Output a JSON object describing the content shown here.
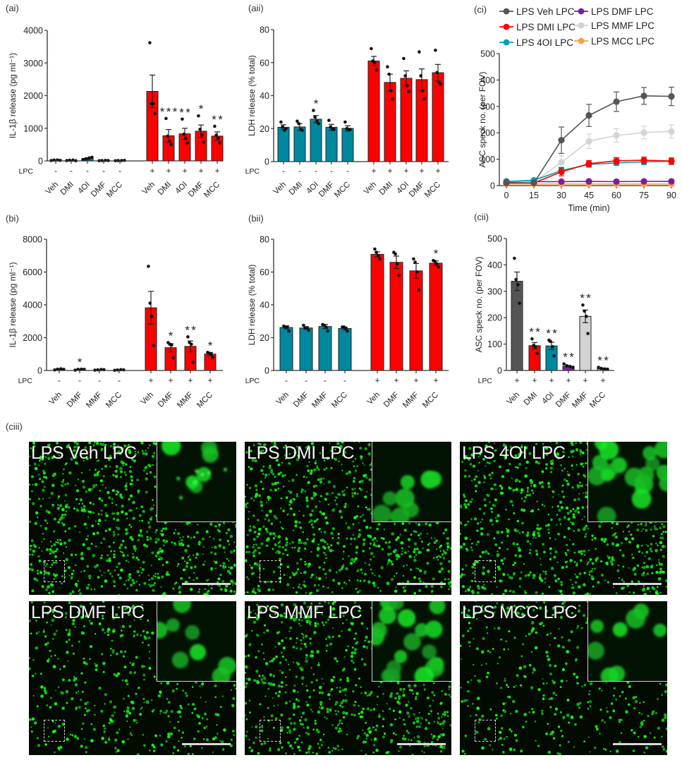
{
  "panels": {
    "ai": "(ai)",
    "aii": "(aii)",
    "ci": "(ci)",
    "bi": "(bi)",
    "bii": "(bii)",
    "cii": "(cii)",
    "ciii": "(ciii)"
  },
  "colors": {
    "red": "#ff0000",
    "teal": "#00889e",
    "dark_gray": "#555555",
    "light_gray": "#d3d3d3",
    "purple": "#7a1fa2",
    "orange": "#f5a04a",
    "axis": "#333333"
  },
  "lpc_label": "LPC",
  "chart_data": [
    {
      "id": "ai",
      "type": "bar",
      "title": "(ai)",
      "ylabel": "IL-1β release (pg ml⁻¹)",
      "xlabel": "",
      "ylim": [
        0,
        4000
      ],
      "yticks": [
        0,
        1000,
        2000,
        3000,
        4000
      ],
      "categories": [
        "Veh",
        "DMI",
        "4OI",
        "DMF",
        "MCC",
        "Veh",
        "DMI",
        "4OI",
        "DMF",
        "MCC"
      ],
      "lpc": [
        "-",
        "-",
        "-",
        "-",
        "-",
        "+",
        "+",
        "+",
        "+",
        "+"
      ],
      "values": [
        20,
        15,
        70,
        10,
        10,
        2130,
        770,
        830,
        910,
        760
      ],
      "sem": [
        8,
        6,
        25,
        5,
        5,
        500,
        190,
        170,
        190,
        130
      ],
      "points": [
        [
          10,
          25,
          30,
          15
        ],
        [
          10,
          20,
          25,
          5
        ],
        [
          40,
          60,
          90,
          110
        ],
        [
          5,
          10,
          15,
          10
        ],
        [
          5,
          10,
          10,
          15
        ],
        [
          3620,
          1750,
          1750,
          1450
        ],
        [
          1300,
          760,
          600,
          500
        ],
        [
          1280,
          820,
          690,
          550
        ],
        [
          1380,
          970,
          800,
          580
        ],
        [
          1060,
          790,
          700,
          550
        ]
      ],
      "significance": [
        "",
        "",
        "",
        "",
        "",
        "",
        "***",
        "**",
        "*",
        "**"
      ],
      "bar_colors": [
        "#00889e",
        "#00889e",
        "#00889e",
        "#00889e",
        "#00889e",
        "#ff0000",
        "#ff0000",
        "#ff0000",
        "#ff0000",
        "#ff0000"
      ]
    },
    {
      "id": "aii",
      "type": "bar",
      "title": "(aii)",
      "ylabel": "LDH release (% total)",
      "xlabel": "",
      "ylim": [
        0,
        80
      ],
      "yticks": [
        0,
        20,
        40,
        60,
        80
      ],
      "categories": [
        "Veh",
        "DMI",
        "4OI",
        "DMF",
        "MCC",
        "Veh",
        "DMI",
        "4OI",
        "DMF",
        "MCC"
      ],
      "lpc": [
        "-",
        "-",
        "-",
        "-",
        "-",
        "+",
        "+",
        "+",
        "+",
        "+"
      ],
      "values": [
        20.8,
        21.0,
        25.7,
        20.8,
        20.1,
        61.0,
        48.0,
        50.5,
        49.7,
        53.9
      ],
      "sem": [
        1.5,
        2.0,
        2.2,
        1.8,
        1.6,
        2.8,
        5.0,
        4.5,
        6.5,
        5.0
      ],
      "points": [
        [
          24,
          21,
          19,
          20
        ],
        [
          24.5,
          23,
          19.5,
          19
        ],
        [
          31,
          27,
          24.5,
          23
        ],
        [
          25,
          21,
          19.5,
          19.5
        ],
        [
          24,
          20,
          19.5,
          19.5
        ],
        [
          68.5,
          61,
          60,
          55.5
        ],
        [
          57.5,
          53,
          43,
          38
        ],
        [
          62.5,
          52,
          46,
          42.5
        ],
        [
          66.5,
          52,
          43,
          38
        ],
        [
          67.5,
          54,
          48,
          47
        ]
      ],
      "significance": [
        "",
        "",
        "*",
        "",
        "",
        "",
        "",
        "",
        "",
        ""
      ],
      "bar_colors": [
        "#00889e",
        "#00889e",
        "#00889e",
        "#00889e",
        "#00889e",
        "#ff0000",
        "#ff0000",
        "#ff0000",
        "#ff0000",
        "#ff0000"
      ]
    },
    {
      "id": "ci",
      "type": "line",
      "title": "(ci)",
      "ylabel": "ASC speck no. (per FOV)",
      "xlabel": "Time (min)",
      "x": [
        0,
        15,
        30,
        45,
        60,
        75,
        90
      ],
      "xlim": [
        0,
        90
      ],
      "ylim": [
        0,
        500
      ],
      "xticks": [
        0,
        15,
        30,
        45,
        60,
        75,
        90
      ],
      "yticks": [
        0,
        100,
        200,
        300,
        400,
        500
      ],
      "legend_position": "top",
      "series": [
        {
          "name": "LPS Veh LPC",
          "color": "#555555",
          "values": [
            12,
            10,
            172,
            266,
            318,
            340,
            338
          ],
          "sem": [
            4,
            4,
            50,
            42,
            37,
            32,
            35
          ]
        },
        {
          "name": "LPS DMI LPC",
          "color": "#ff0000",
          "values": [
            10,
            10,
            52,
            83,
            94,
            96,
            93
          ],
          "sem": [
            3,
            3,
            15,
            12,
            12,
            12,
            12
          ]
        },
        {
          "name": "LPS 4OI LPC",
          "color": "#00a0b0",
          "values": [
            16,
            20,
            57,
            80,
            86,
            90,
            92
          ],
          "sem": [
            3,
            4,
            12,
            10,
            10,
            10,
            12
          ]
        },
        {
          "name": "LPS DMF LPC",
          "color": "#7a1fa2",
          "values": [
            14,
            15,
            15,
            16,
            15,
            16,
            16
          ],
          "sem": [
            2,
            2,
            2,
            2,
            2,
            2,
            2
          ]
        },
        {
          "name": "LPS MMF LPC",
          "color": "#d3d3d3",
          "values": [
            12,
            15,
            88,
            168,
            190,
            201,
            205
          ],
          "sem": [
            3,
            4,
            25,
            28,
            26,
            24,
            25
          ]
        },
        {
          "name": "LPS MCC LPC",
          "color": "#f5a04a",
          "values": [
            6,
            6,
            6,
            6,
            6,
            6,
            6
          ],
          "sem": [
            1,
            1,
            1,
            1,
            1,
            1,
            1
          ]
        }
      ]
    },
    {
      "id": "bi",
      "type": "bar",
      "title": "(bi)",
      "ylabel": "IL-1β release (pg ml⁻¹)",
      "xlabel": "",
      "ylim": [
        0,
        8000
      ],
      "yticks": [
        0,
        2000,
        4000,
        6000,
        8000
      ],
      "categories": [
        "Veh",
        "DMF",
        "MMF",
        "MCC",
        "Veh",
        "DMF",
        "MMF",
        "MCC"
      ],
      "lpc": [
        "-",
        "-",
        "-",
        "-",
        "+",
        "+",
        "+",
        "+"
      ],
      "values": [
        70,
        60,
        40,
        30,
        3820,
        1390,
        1470,
        1000
      ],
      "sem": [
        20,
        15,
        15,
        10,
        1000,
        250,
        330,
        100
      ],
      "points": [
        [
          30,
          80,
          100,
          70
        ],
        [
          20,
          70,
          80,
          70
        ],
        [
          20,
          40,
          60,
          50
        ],
        [
          10,
          30,
          50,
          40
        ],
        [
          6350,
          4100,
          3300,
          1520
        ],
        [
          1700,
          1600,
          1550,
          770
        ],
        [
          2050,
          1700,
          1600,
          500
        ],
        [
          1100,
          1050,
          1000,
          800
        ]
      ],
      "significance": [
        "",
        "*",
        "",
        "",
        "",
        "*",
        "**",
        "*"
      ],
      "bar_colors": [
        "#00889e",
        "#00889e",
        "#00889e",
        "#00889e",
        "#ff0000",
        "#ff0000",
        "#ff0000",
        "#ff0000"
      ]
    },
    {
      "id": "bii",
      "type": "bar",
      "title": "(bii)",
      "ylabel": "LDH release (% total)",
      "xlabel": "",
      "ylim": [
        0,
        80
      ],
      "yticks": [
        0,
        20,
        40,
        60,
        80
      ],
      "categories": [
        "Veh",
        "DMF",
        "MMF",
        "MCC",
        "Veh",
        "DMF",
        "MMF",
        "MCC"
      ],
      "lpc": [
        "-",
        "-",
        "-",
        "-",
        "+",
        "+",
        "+",
        "+"
      ],
      "values": [
        26.2,
        25.9,
        26.8,
        25.6,
        70.8,
        65.9,
        60.7,
        65.4
      ],
      "sem": [
        1.0,
        0.8,
        1.3,
        0.9,
        1.5,
        3.8,
        4.5,
        1.4
      ],
      "points": [
        [
          27,
          26.5,
          26.5,
          24
        ],
        [
          27.5,
          26,
          26,
          24.5
        ],
        [
          28,
          27.5,
          26.5,
          24
        ],
        [
          26.5,
          26.5,
          25.5,
          24
        ],
        [
          74,
          72,
          70,
          68
        ],
        [
          72,
          71,
          65,
          58
        ],
        [
          68,
          66,
          60,
          49
        ],
        [
          67,
          66.5,
          65,
          63
        ]
      ],
      "significance": [
        "",
        "",
        "",
        "",
        "",
        "",
        "",
        "*"
      ],
      "bar_colors": [
        "#00889e",
        "#00889e",
        "#00889e",
        "#00889e",
        "#ff0000",
        "#ff0000",
        "#ff0000",
        "#ff0000"
      ]
    },
    {
      "id": "cii",
      "type": "bar",
      "title": "(cii)",
      "ylabel": "ASC speck no. (per FOV)",
      "xlabel": "",
      "ylim": [
        0,
        500
      ],
      "yticks": [
        0,
        100,
        200,
        300,
        400,
        500
      ],
      "categories": [
        "Veh",
        "DMI",
        "4OI",
        "DMF",
        "MMF",
        "MCC"
      ],
      "lpc": [
        "+",
        "+",
        "+",
        "+",
        "+",
        "+"
      ],
      "values": [
        338,
        94,
        93,
        16,
        205,
        7
      ],
      "sem": [
        35,
        12,
        14,
        3,
        24,
        2
      ],
      "points": [
        [
          425,
          345,
          325,
          255
        ],
        [
          120,
          95,
          90,
          65
        ],
        [
          115,
          110,
          90,
          55
        ],
        [
          25,
          18,
          15,
          12
        ],
        [
          248,
          225,
          205,
          140
        ],
        [
          12,
          8,
          6,
          5
        ]
      ],
      "significance": [
        "",
        "**",
        "**",
        "**",
        "**",
        "**"
      ],
      "bar_colors": [
        "#555555",
        "#ff0000",
        "#00889e",
        "#7a1fa2",
        "#d3d3d3",
        "#c48a5a"
      ]
    }
  ],
  "micrographs": [
    {
      "title": "LPS Veh LPC",
      "density": 1.0,
      "inset": "specks"
    },
    {
      "title": "LPS DMI LPC",
      "density": 0.95,
      "inset": "cells"
    },
    {
      "title": "LPS 4OI LPC",
      "density": 0.95,
      "inset": "dense-cells"
    },
    {
      "title": "LPS DMF LPC",
      "density": 0.55,
      "inset": "cells"
    },
    {
      "title": "LPS MMF LPC",
      "density": 0.85,
      "inset": "dense-cells"
    },
    {
      "title": "LPS MCC LPC",
      "density": 0.5,
      "inset": "cells"
    }
  ]
}
